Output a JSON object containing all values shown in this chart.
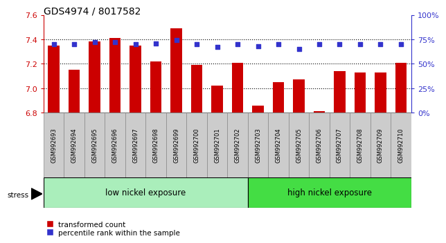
{
  "title": "GDS4974 / 8017582",
  "samples": [
    "GSM992693",
    "GSM992694",
    "GSM992695",
    "GSM992696",
    "GSM992697",
    "GSM992698",
    "GSM992699",
    "GSM992700",
    "GSM992701",
    "GSM992702",
    "GSM992703",
    "GSM992704",
    "GSM992705",
    "GSM992706",
    "GSM992707",
    "GSM992708",
    "GSM992709",
    "GSM992710"
  ],
  "transformed_count": [
    7.35,
    7.15,
    7.38,
    7.41,
    7.35,
    7.22,
    7.49,
    7.19,
    7.02,
    7.21,
    6.86,
    7.05,
    7.07,
    6.81,
    7.14,
    7.13,
    7.13,
    7.21
  ],
  "percentile_rank": [
    70,
    70,
    72,
    72,
    70,
    71,
    74,
    70,
    67,
    70,
    68,
    70,
    65,
    70,
    70,
    70,
    70,
    70
  ],
  "ylim_left": [
    6.8,
    7.6
  ],
  "ylim_right": [
    0,
    100
  ],
  "yticks_left": [
    6.8,
    7.0,
    7.2,
    7.4,
    7.6
  ],
  "yticks_right": [
    0,
    25,
    50,
    75,
    100
  ],
  "ytick_labels_right": [
    "0%",
    "25%",
    "50%",
    "75%",
    "100%"
  ],
  "bar_color": "#cc0000",
  "dot_color": "#3333cc",
  "low_nickel_count": 10,
  "group1_label": "low nickel exposure",
  "group2_label": "high nickel exposure",
  "group1_color": "#aaeebb",
  "group2_color": "#44dd44",
  "stress_label": "stress",
  "legend_bar_label": "transformed count",
  "legend_dot_label": "percentile rank within the sample",
  "title_fontsize": 10,
  "left_tick_color": "#cc0000",
  "right_tick_color": "#3333cc",
  "xlabel_box_color": "#cccccc",
  "xlabel_box_edge": "#888888"
}
